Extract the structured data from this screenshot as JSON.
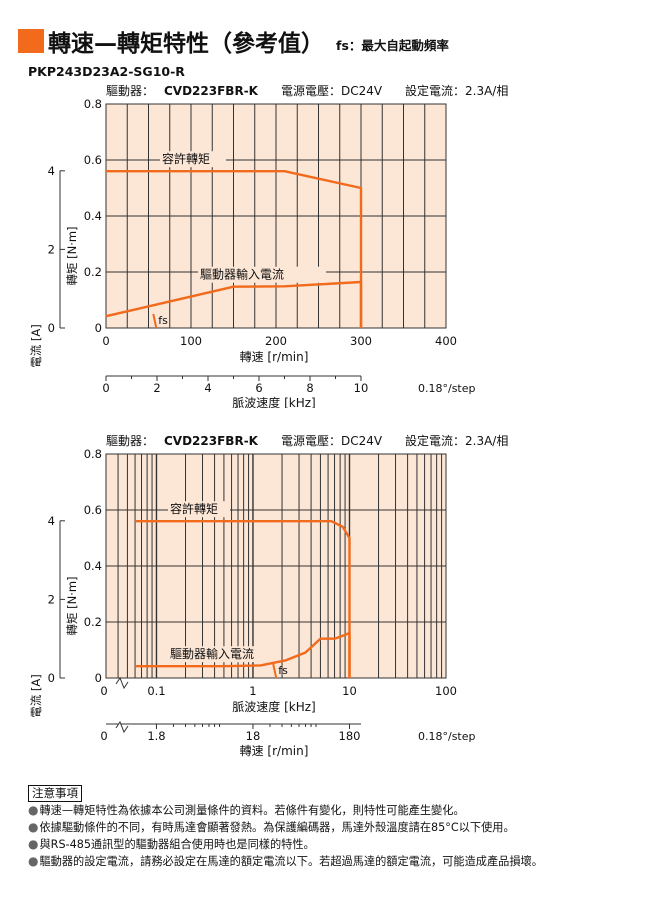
{
  "header": {
    "title": "轉速—轉矩特性（參考值）",
    "subtitle": "fs：最大自起動頻率",
    "model": "PKP243D23A2-SG10-R"
  },
  "colors": {
    "accent": "#f26a1b",
    "plot_bg": "#fce6d6",
    "grid": "#333333"
  },
  "charts": [
    {
      "info": {
        "driver_label": "驅動器：",
        "driver_model": "CVD223FBR-K",
        "voltage": "電源電壓：DC24V",
        "current": "設定電流：2.3A/相"
      },
      "torque_axis_title": "轉矩 [N·m]",
      "current_axis_title": "電流 [A]",
      "bottom_axis_title": "轉速 [r/min]",
      "secondary_axis_title": "脈波速度 [kHz]",
      "torque_curve_label": "容許轉矩",
      "current_curve_label": "驅動器輸入電流",
      "fs_label": "fs",
      "torque_ticks": [
        "0",
        "0.2",
        "0.4",
        "0.6",
        "0.8"
      ],
      "current_ticks": [
        "0",
        "2",
        "4"
      ],
      "bottom_ticks": [
        "0",
        "100",
        "200",
        "300",
        "400"
      ],
      "secondary_ticks": [
        "0",
        "2",
        "4",
        "6",
        "8",
        "10"
      ],
      "secondary_extra": "0.18°/step"
    },
    {
      "info": {
        "driver_label": "驅動器：",
        "driver_model": "CVD223FBR-K",
        "voltage": "電源電壓：DC24V",
        "current": "設定電流：2.3A/相"
      },
      "torque_axis_title": "轉矩 [N·m]",
      "current_axis_title": "電流 [A]",
      "bottom_axis_title": "脈波速度 [kHz]",
      "secondary_axis_title": "轉速 [r/min]",
      "torque_curve_label": "容許轉矩",
      "current_curve_label": "驅動器輸入電流",
      "fs_label": "fs",
      "torque_ticks": [
        "0",
        "0.2",
        "0.4",
        "0.6",
        "0.8"
      ],
      "current_ticks": [
        "0",
        "2",
        "4"
      ],
      "bottom_ticks": [
        "0",
        "0.1",
        "1",
        "10",
        "100"
      ],
      "secondary_ticks": [
        "0",
        "1.8",
        "18",
        "180"
      ],
      "secondary_extra": "0.18°/step"
    }
  ],
  "chart_data": [
    {
      "type": "line",
      "x_scale": "linear",
      "xlabel": "轉速 [r/min]",
      "xlim": [
        0,
        400
      ],
      "ylabel": "轉矩 [N·m]",
      "ylim": [
        0,
        0.8
      ],
      "y2label": "電流 [A]",
      "y2lim": [
        0,
        5.7
      ],
      "secondary_x": {
        "label": "脈波速度 [kHz]",
        "range_khz": [
          0,
          10
        ],
        "resolution": "0.18°/step"
      },
      "series": [
        {
          "name": "容許轉矩",
          "axis": "torque",
          "x": [
            0,
            210,
            300,
            300
          ],
          "y": [
            0.56,
            0.56,
            0.5,
            0
          ]
        },
        {
          "name": "驅動器輸入電流",
          "axis": "current",
          "x": [
            0,
            150,
            210,
            300,
            300
          ],
          "y": [
            0.3,
            1.05,
            1.06,
            1.17,
            0
          ]
        }
      ],
      "fs": {
        "x": 58
      }
    },
    {
      "type": "line",
      "x_scale": "log",
      "xlabel": "脈波速度 [kHz]",
      "xlim": [
        0.03,
        100
      ],
      "ylabel": "轉矩 [N·m]",
      "ylim": [
        0,
        0.8
      ],
      "y2label": "電流 [A]",
      "y2lim": [
        0,
        5.7
      ],
      "secondary_x": {
        "label": "轉速 [r/min]",
        "values": [
          1.8,
          18,
          180
        ],
        "resolution": "0.18°/step"
      },
      "series": [
        {
          "name": "容許轉矩",
          "axis": "torque",
          "x": [
            0.06,
            1.0,
            6.5,
            8.5,
            10,
            10
          ],
          "y": [
            0.56,
            0.56,
            0.56,
            0.54,
            0.5,
            0
          ]
        },
        {
          "name": "驅動器輸入電流",
          "axis": "current",
          "x": [
            0.06,
            0.5,
            1.2,
            2.2,
            3.5,
            5.0,
            7.0,
            8.0,
            9.5,
            10,
            10
          ],
          "y": [
            0.3,
            0.3,
            0.32,
            0.45,
            0.65,
            1.0,
            1.0,
            1.05,
            1.12,
            1.15,
            0
          ]
        }
      ],
      "fs": {
        "x": 1.7
      }
    }
  ],
  "notes": {
    "title": "注意事項",
    "items": [
      "轉速—轉矩特性為依據本公司測量條件的資料。若條件有變化，則特性可能產生變化。",
      "依據驅動條件的不同，有時馬達會顯著發熱。為保護編碼器，馬達外殼溫度請在85°C以下使用。",
      "與RS-485通訊型的驅動器組合使用時也是同樣的特性。",
      "驅動器的設定電流，請務必設定在馬達的額定電流以下。若超過馬達的額定電流，可能造成產品損壞。"
    ]
  }
}
